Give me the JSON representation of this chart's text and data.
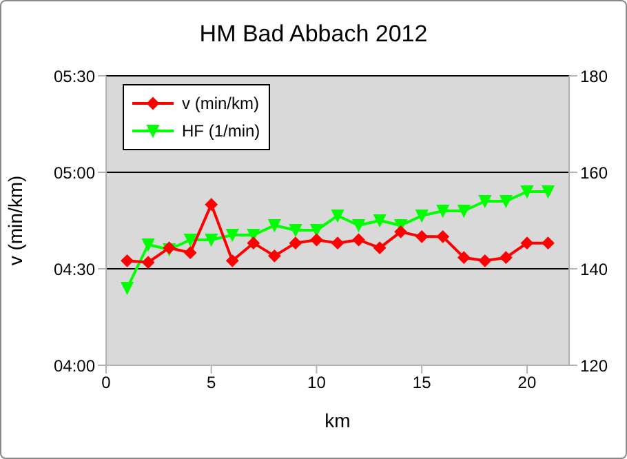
{
  "chart_data": {
    "type": "line",
    "title": "HM Bad Abbach 2012",
    "xlabel": "km",
    "ylabel": "v (min/km)",
    "x": [
      1,
      2,
      3,
      4,
      5,
      6,
      7,
      8,
      9,
      10,
      11,
      12,
      13,
      14,
      15,
      16,
      17,
      18,
      19,
      20,
      21
    ],
    "series": [
      {
        "name": "v (min/km)",
        "color": "#ff0000",
        "marker": "diamond",
        "values": [
          272.5,
          272,
          276.5,
          275,
          290,
          272.5,
          278,
          274,
          278,
          279,
          278,
          279,
          276.5,
          281.5,
          280,
          280,
          273.5,
          272.5,
          273.5,
          278,
          278
        ]
      },
      {
        "name": "HF (1/min)",
        "color": "#00ff00",
        "marker": "triangle",
        "axis": "y2",
        "values": [
          136,
          145,
          144,
          146,
          146,
          147,
          147,
          149,
          148,
          148,
          151,
          149,
          150,
          149,
          151,
          152,
          152,
          154,
          154,
          156,
          156
        ]
      }
    ],
    "xlim": [
      0,
      22
    ],
    "xticks": [
      0,
      5,
      10,
      15,
      20
    ],
    "ylim": [
      240,
      330
    ],
    "yticks": [
      {
        "value": 240,
        "label": "04:00"
      },
      {
        "value": 270,
        "label": "04:30"
      },
      {
        "value": 300,
        "label": "05:00"
      },
      {
        "value": 330,
        "label": "05:30"
      }
    ],
    "y2lim": [
      120,
      180
    ],
    "y2ticks": [
      120,
      140,
      160,
      180
    ],
    "grid": "y",
    "legend": "top left",
    "line_style": "solid"
  }
}
